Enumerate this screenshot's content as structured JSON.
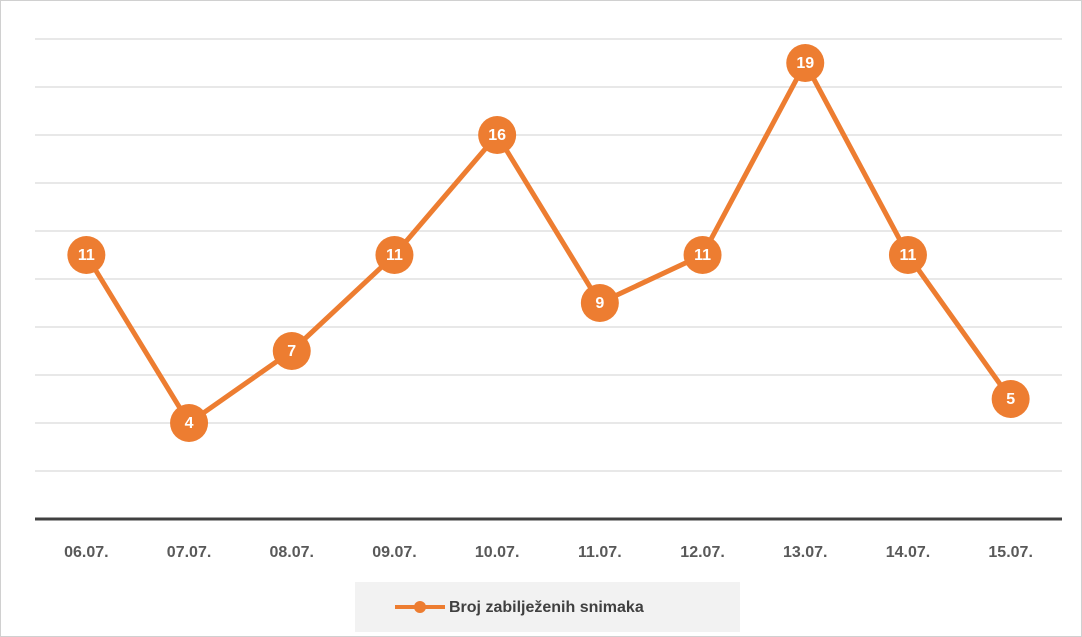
{
  "chart_data": {
    "type": "line",
    "categories": [
      "06.07.",
      "07.07.",
      "08.07.",
      "09.07.",
      "10.07.",
      "11.07.",
      "12.07.",
      "13.07.",
      "14.07.",
      "15.07."
    ],
    "series": [
      {
        "name": "Broj zabilježenih snimaka",
        "color": "#ed7d31",
        "values": [
          11,
          4,
          7,
          11,
          16,
          9,
          11,
          19,
          11,
          5
        ]
      }
    ],
    "ylim": [
      0,
      20
    ],
    "yticks": [
      0,
      2,
      4,
      6,
      8,
      10,
      12,
      14,
      16,
      18,
      20
    ],
    "grid": true,
    "legend": "bottom"
  }
}
